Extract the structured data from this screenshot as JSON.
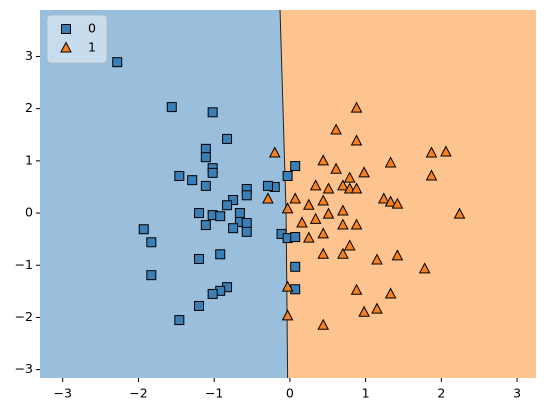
{
  "chart_data": {
    "type": "scatter",
    "xlim": [
      -3.3,
      3.25
    ],
    "ylim": [
      -3.16,
      3.89
    ],
    "xticks": [
      {
        "value": -3,
        "label": "−3"
      },
      {
        "value": -2,
        "label": "−2"
      },
      {
        "value": -1,
        "label": "−1"
      },
      0,
      1,
      2,
      3
    ],
    "yticks": [
      {
        "value": -3,
        "label": "−3"
      },
      {
        "value": -2,
        "label": "−2"
      },
      {
        "value": -1,
        "label": "−1"
      },
      0,
      1,
      2,
      3
    ],
    "boundary": {
      "x": [
        -0.13,
        -0.05,
        -0.03
      ],
      "y": [
        3.89,
        0,
        -3.16
      ]
    },
    "region_colors": [
      "#9abfdd",
      "#fec48f"
    ],
    "legend": "upper left",
    "series": [
      {
        "name": "0",
        "color": "#3a7fb6",
        "marker": "square",
        "x": [
          -2.28,
          -1.56,
          -1.02,
          -0.83,
          -1.11,
          -1.11,
          -1.46,
          -1.29,
          -1.02,
          -1.02,
          -1.11,
          -0.57,
          -0.57,
          -0.75,
          -0.83,
          -0.2,
          -0.29,
          0.07,
          -0.03,
          -1.2,
          -1.02,
          -0.92,
          -0.66,
          -0.66,
          -0.57,
          -0.75,
          -0.57,
          -1.11,
          -1.93,
          -1.83,
          -0.11,
          -0.03,
          0.07,
          -0.92,
          -1.2,
          0.07,
          -1.83,
          -0.83,
          -0.92,
          -1.02,
          -1.2,
          -1.46,
          0.07
        ],
        "values": [
          2.89,
          2.03,
          1.93,
          1.42,
          1.23,
          1.07,
          0.71,
          0.63,
          0.86,
          0.77,
          0.52,
          0.46,
          0.34,
          0.25,
          0.15,
          0.5,
          0.52,
          0.9,
          0.71,
          0.0,
          -0.04,
          -0.06,
          0.0,
          -0.17,
          -0.19,
          -0.29,
          -0.36,
          -0.23,
          -0.31,
          -0.56,
          -0.4,
          -0.48,
          -0.46,
          -0.79,
          -0.88,
          -1.03,
          -1.19,
          -1.42,
          -1.49,
          -1.55,
          -1.78,
          -2.05,
          -1.46
        ]
      },
      {
        "name": "1",
        "color": "#f5811f",
        "marker": "triangle",
        "x": [
          0.88,
          0.61,
          0.88,
          -0.2,
          2.06,
          1.87,
          1.33,
          0.44,
          0.61,
          0.98,
          1.87,
          0.79,
          0.34,
          0.51,
          0.7,
          0.79,
          0.88,
          -0.29,
          0.07,
          0.44,
          0.25,
          1.24,
          1.33,
          1.42,
          -0.03,
          0.51,
          0.7,
          2.24,
          0.16,
          0.34,
          0.7,
          0.88,
          0.25,
          0.44,
          0.79,
          0.44,
          0.7,
          1.15,
          1.42,
          1.78,
          -0.03,
          0.88,
          1.33,
          1.15,
          0.98,
          -0.03,
          0.44
        ],
        "values": [
          2.01,
          1.59,
          1.38,
          1.15,
          1.17,
          1.15,
          0.96,
          1.0,
          0.84,
          0.77,
          0.71,
          0.67,
          0.52,
          0.46,
          0.52,
          0.46,
          0.46,
          0.27,
          0.27,
          0.23,
          0.15,
          0.27,
          0.21,
          0.17,
          0.08,
          -0.02,
          0.04,
          -0.02,
          -0.19,
          -0.12,
          -0.23,
          -0.23,
          -0.48,
          -0.4,
          -0.63,
          -0.79,
          -0.79,
          -0.9,
          -0.82,
          -1.07,
          -1.42,
          -1.48,
          -1.55,
          -1.84,
          -1.9,
          -1.97,
          -2.15
        ]
      }
    ]
  }
}
